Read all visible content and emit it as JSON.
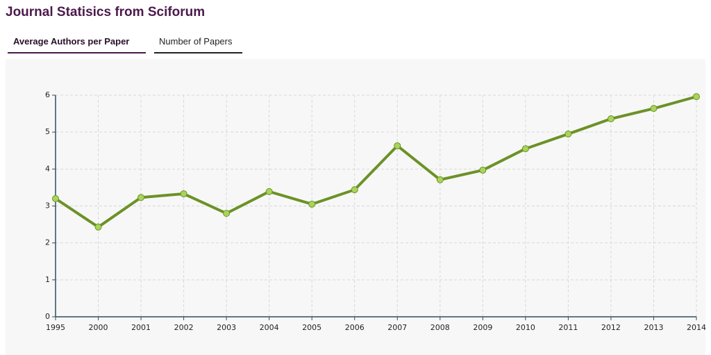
{
  "header": {
    "title": "Journal Statisics from Sciforum"
  },
  "tabs": [
    "Average Authors per Paper",
    "Number of Papers"
  ],
  "chart_data": {
    "type": "line",
    "categories": [
      "1995",
      "2000",
      "2001",
      "2002",
      "2003",
      "2004",
      "2005",
      "2006",
      "2007",
      "2008",
      "2009",
      "2010",
      "2011",
      "2012",
      "2013",
      "2014"
    ],
    "values": [
      3.2,
      2.43,
      3.23,
      3.33,
      2.8,
      3.39,
      3.05,
      3.44,
      4.63,
      3.71,
      3.97,
      4.55,
      4.95,
      5.36,
      5.64,
      5.96
    ],
    "color": "#6b9226",
    "marker_color": "#a9d45a",
    "ylim": [
      0,
      6
    ],
    "yticks": [
      0,
      1,
      2,
      3,
      4,
      5,
      6
    ],
    "grid": true
  }
}
